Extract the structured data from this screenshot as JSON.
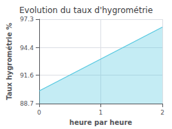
{
  "chart_data": {
    "type": "area",
    "title": "Evolution du taux d'hygrométrie",
    "xlabel": "heure par heure",
    "ylabel": "Taux hygrométrie %",
    "x": [
      0,
      2
    ],
    "values": [
      90.0,
      96.5
    ],
    "color": "#55c8e0",
    "xlim": [
      0,
      2
    ],
    "ylim": [
      88.7,
      97.3
    ],
    "xticks": [
      0,
      1,
      2
    ],
    "yticks": [
      88.7,
      91.6,
      94.4,
      97.3
    ],
    "grid": true
  }
}
